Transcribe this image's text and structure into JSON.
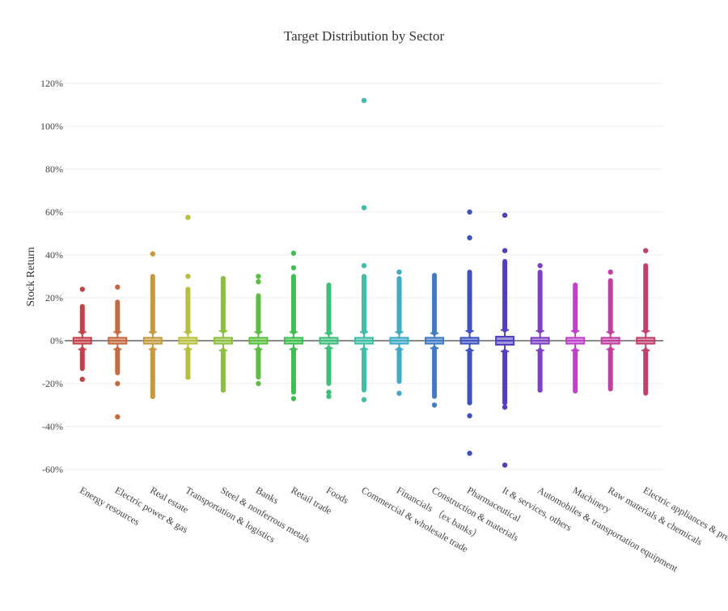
{
  "chart_data": {
    "type": "box",
    "title": "Target Distribution by Sector",
    "xlabel": "",
    "ylabel": "Stock Return",
    "ylim": [
      -65,
      125
    ],
    "y_ticks": [
      -60,
      -40,
      -20,
      0,
      20,
      40,
      60,
      80,
      100,
      120
    ],
    "y_tick_format": "percent",
    "grid": true,
    "legend": "none",
    "series": [
      {
        "name": "Energy resources",
        "color": "#c4414a",
        "q1": -1,
        "median": 0,
        "q3": 1,
        "whisker_low": -4,
        "whisker_high": 4,
        "dense_outliers": [
          -13,
          16
        ],
        "outliers": [
          24,
          -18
        ]
      },
      {
        "name": "Electric power & gas",
        "color": "#c46a40",
        "q1": -1,
        "median": 0,
        "q3": 1,
        "whisker_low": -4,
        "whisker_high": 4,
        "dense_outliers": [
          -15,
          18
        ],
        "outliers": [
          25,
          -20,
          -35.5
        ]
      },
      {
        "name": "Real estate",
        "color": "#c49a40",
        "q1": -1,
        "median": 0,
        "q3": 1,
        "whisker_low": -4,
        "whisker_high": 4,
        "dense_outliers": [
          -25,
          30
        ],
        "outliers": [
          40.5,
          -26
        ]
      },
      {
        "name": "Transportation & logistics",
        "color": "#b8bf40",
        "q1": -1,
        "median": 0,
        "q3": 1,
        "whisker_low": -4,
        "whisker_high": 4,
        "dense_outliers": [
          -16,
          24
        ],
        "outliers": [
          57.5,
          30,
          -17
        ]
      },
      {
        "name": "Steel & nonferrous metals",
        "color": "#8cbf40",
        "q1": -1,
        "median": 0,
        "q3": 1,
        "whisker_low": -4.5,
        "whisker_high": 4.5,
        "dense_outliers": [
          -22,
          28
        ],
        "outliers": [
          29,
          -23
        ]
      },
      {
        "name": "Banks",
        "color": "#5cbf40",
        "q1": -1,
        "median": 0,
        "q3": 1,
        "whisker_low": -4,
        "whisker_high": 4,
        "dense_outliers": [
          -17,
          21
        ],
        "outliers": [
          30,
          27.5,
          -20
        ]
      },
      {
        "name": "Retail trade",
        "color": "#40bf50",
        "q1": -1,
        "median": 0,
        "q3": 1,
        "whisker_low": -4,
        "whisker_high": 4,
        "dense_outliers": [
          -24,
          30
        ],
        "outliers": [
          40.8,
          34,
          -27
        ]
      },
      {
        "name": "Foods",
        "color": "#40bf7c",
        "q1": -1,
        "median": 0,
        "q3": 1,
        "whisker_low": -3.5,
        "whisker_high": 3.5,
        "dense_outliers": [
          -20,
          26
        ],
        "outliers": [
          -24,
          -26
        ]
      },
      {
        "name": "Commercial & wholesale trade",
        "color": "#40bfa8",
        "q1": -1,
        "median": 0,
        "q3": 1,
        "whisker_low": -4,
        "whisker_high": 4,
        "dense_outliers": [
          -23,
          30
        ],
        "outliers": [
          112,
          62,
          35,
          -27.5
        ]
      },
      {
        "name": "Financials （ex banks）",
        "color": "#40aac4",
        "q1": -1,
        "median": 0,
        "q3": 1,
        "whisker_low": -4,
        "whisker_high": 4,
        "dense_outliers": [
          -19,
          29
        ],
        "outliers": [
          32,
          -24.5
        ]
      },
      {
        "name": "Construction & materials",
        "color": "#407cc4",
        "q1": -1,
        "median": 0,
        "q3": 1,
        "whisker_low": -3.5,
        "whisker_high": 3.5,
        "dense_outliers": [
          -26,
          30.5
        ],
        "outliers": [
          -30
        ]
      },
      {
        "name": "Pharmaceutical",
        "color": "#4052c0",
        "q1": -1,
        "median": 0,
        "q3": 1,
        "whisker_low": -4.5,
        "whisker_high": 4.5,
        "dense_outliers": [
          -29,
          32
        ],
        "outliers": [
          60,
          48,
          -35,
          -52.5
        ]
      },
      {
        "name": "It & services, others",
        "color": "#5040c0",
        "q1": -1.5,
        "median": 0,
        "q3": 1.5,
        "whisker_low": -5,
        "whisker_high": 5,
        "dense_outliers": [
          -29,
          37
        ],
        "outliers": [
          58.5,
          42,
          -31,
          -58
        ]
      },
      {
        "name": "Automobiles & transportation equipment",
        "color": "#8040c4",
        "q1": -1,
        "median": 0,
        "q3": 1,
        "whisker_low": -4.5,
        "whisker_high": 4.5,
        "dense_outliers": [
          -22,
          32
        ],
        "outliers": [
          35,
          -23
        ]
      },
      {
        "name": "Machinery",
        "color": "#c040c8",
        "q1": -1,
        "median": 0,
        "q3": 1,
        "whisker_low": -4.5,
        "whisker_high": 4.5,
        "dense_outliers": [
          -23.5,
          26
        ],
        "outliers": []
      },
      {
        "name": "Raw materials & chemicals",
        "color": "#c040a0",
        "q1": -1,
        "median": 0,
        "q3": 1,
        "whisker_low": -4,
        "whisker_high": 4,
        "dense_outliers": [
          -22.5,
          28
        ],
        "outliers": [
          32
        ]
      },
      {
        "name": "Electric appliances & precision instruments",
        "color": "#c0406c",
        "q1": -1,
        "median": 0,
        "q3": 1,
        "whisker_low": -4.5,
        "whisker_high": 4.5,
        "dense_outliers": [
          -24.5,
          35
        ],
        "outliers": [
          42
        ]
      }
    ]
  }
}
